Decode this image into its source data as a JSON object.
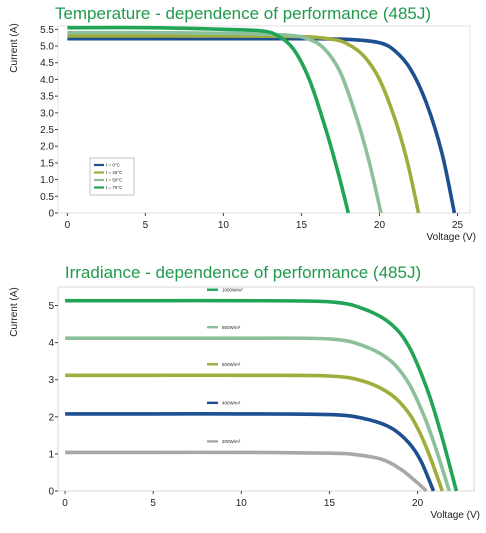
{
  "chart_data": [
    {
      "type": "line",
      "title": "Temperature - dependence of performance (485J)",
      "xlabel": "Voltage (V)",
      "ylabel": "Current (A)",
      "xlim": [
        -0.6,
        25.8
      ],
      "ylim": [
        0,
        5.6
      ],
      "xticks": [
        0,
        5,
        10,
        15,
        20,
        25
      ],
      "yticks": [
        0,
        0.5,
        1.0,
        1.5,
        2.0,
        2.5,
        3.0,
        3.5,
        4.0,
        4.5,
        5.0,
        5.5
      ],
      "ytick_labels": [
        "0",
        "0.5",
        "1.0",
        "1.5",
        "2.0",
        "2.5",
        "3.0",
        "3.5",
        "4.0",
        "4.5",
        "5.0",
        "5.5"
      ],
      "grid": false,
      "legend": "bottom-left",
      "series": [
        {
          "name": "t = 0°C",
          "color": "#1d4f91",
          "x": [
            0,
            5,
            10,
            15,
            18,
            20,
            21,
            22,
            23,
            24,
            24.8
          ],
          "y": [
            5.22,
            5.22,
            5.22,
            5.22,
            5.2,
            5.1,
            4.85,
            4.3,
            3.3,
            1.8,
            0
          ]
        },
        {
          "name": "t = 25°C",
          "color": "#a0ad3c",
          "x": [
            0,
            5,
            10,
            15,
            17,
            18,
            19,
            20,
            21,
            21.8,
            22.5
          ],
          "y": [
            5.3,
            5.3,
            5.3,
            5.28,
            5.2,
            5.05,
            4.7,
            4.0,
            2.8,
            1.5,
            0
          ]
        },
        {
          "name": "t = 50°C",
          "color": "#8cc09b",
          "x": [
            0,
            5,
            10,
            14,
            15.5,
            16.5,
            17.5,
            18.5,
            19.3,
            20.1
          ],
          "y": [
            5.4,
            5.4,
            5.38,
            5.33,
            5.2,
            4.9,
            4.2,
            2.9,
            1.6,
            0
          ]
        },
        {
          "name": "t = 75°C",
          "color": "#22a456",
          "x": [
            0,
            5,
            10,
            12.5,
            13.5,
            14.5,
            15.5,
            16.5,
            17.3,
            18.0
          ],
          "y": [
            5.55,
            5.55,
            5.5,
            5.45,
            5.3,
            4.9,
            4.0,
            2.6,
            1.3,
            0
          ]
        }
      ]
    },
    {
      "type": "line",
      "title": "Irradiance - dependence of performance (485J)",
      "xlabel": "Voltage (V)",
      "ylabel": "Current (A)",
      "xlim": [
        -0.4,
        23.2
      ],
      "ylim": [
        0,
        5.5
      ],
      "xticks": [
        0,
        5,
        10,
        15,
        20
      ],
      "yticks": [
        0,
        1,
        2,
        3,
        4,
        5
      ],
      "ytick_labels": [
        "0",
        "1",
        "2",
        "3",
        "4",
        "5"
      ],
      "grid": false,
      "legend": "inline",
      "series": [
        {
          "name": "1000W/m²",
          "color": "#22a456",
          "x": [
            0,
            5,
            10,
            15,
            17,
            18.5,
            19.5,
            20.5,
            21.3,
            22.2
          ],
          "y": [
            5.13,
            5.13,
            5.13,
            5.1,
            4.9,
            4.5,
            3.9,
            2.8,
            1.6,
            0
          ]
        },
        {
          "name": "800W/m²",
          "color": "#8cc09b",
          "x": [
            0,
            5,
            10,
            15,
            17,
            18.5,
            19.5,
            20.3,
            21.0,
            21.8
          ],
          "y": [
            4.12,
            4.12,
            4.12,
            4.1,
            3.9,
            3.5,
            2.9,
            2.1,
            1.2,
            0
          ]
        },
        {
          "name": "600W/m²",
          "color": "#a0ad3c",
          "x": [
            0,
            5,
            10,
            15,
            17,
            18.5,
            19.5,
            20.2,
            20.8,
            21.4
          ],
          "y": [
            3.12,
            3.12,
            3.12,
            3.1,
            2.95,
            2.6,
            2.1,
            1.5,
            0.8,
            0
          ]
        },
        {
          "name": "400W/m²",
          "color": "#1d4f91",
          "x": [
            0,
            5,
            10,
            15,
            17,
            18.5,
            19.5,
            20.2,
            20.9
          ],
          "y": [
            2.08,
            2.08,
            2.08,
            2.06,
            1.95,
            1.7,
            1.3,
            0.8,
            0
          ]
        },
        {
          "name": "200W/m²",
          "color": "#a8a8a8",
          "x": [
            0,
            5,
            10,
            15,
            16.5,
            18,
            19,
            19.8,
            20.5
          ],
          "y": [
            1.04,
            1.04,
            1.04,
            1.02,
            0.98,
            0.85,
            0.6,
            0.3,
            0
          ]
        }
      ]
    }
  ]
}
